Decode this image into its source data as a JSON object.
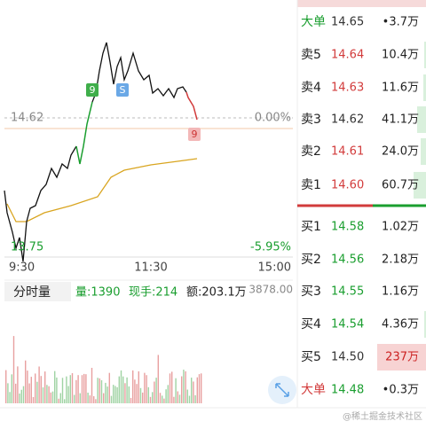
{
  "chart": {
    "ref_price": "14.62",
    "ref_change": "0.00%",
    "low_price": "13.75",
    "low_change": "-5.95%",
    "times": [
      "9:30",
      "11:30",
      "15:00"
    ],
    "markers": [
      "9",
      "S",
      "9"
    ]
  },
  "volume": {
    "title": "分时量",
    "volume": "量:1390",
    "hand": "现手:214",
    "amount": "额:203.1万",
    "max": "3878.00"
  },
  "order_book": {
    "rows": [
      {
        "label": "大单",
        "price": "14.65",
        "volume": "•3.7万"
      },
      {
        "label": "卖5",
        "price": "14.64",
        "volume": "10.4万"
      },
      {
        "label": "卖4",
        "price": "14.63",
        "volume": "11.6万"
      },
      {
        "label": "卖3",
        "price": "14.62",
        "volume": "41.1万"
      },
      {
        "label": "卖2",
        "price": "14.61",
        "volume": "24.0万"
      },
      {
        "label": "卖1",
        "price": "14.60",
        "volume": "60.7万"
      },
      {
        "label": "买1",
        "price": "14.58",
        "volume": "1.02万"
      },
      {
        "label": "买2",
        "price": "14.56",
        "volume": "2.18万"
      },
      {
        "label": "买3",
        "price": "14.55",
        "volume": "1.16万"
      },
      {
        "label": "买4",
        "price": "14.54",
        "volume": "4.36万"
      },
      {
        "label": "买5",
        "price": "14.50",
        "volume": "237万"
      },
      {
        "label": "大单",
        "price": "14.48",
        "volume": "•0.3万"
      }
    ]
  },
  "watermark": "@稀土掘金技术社区"
}
